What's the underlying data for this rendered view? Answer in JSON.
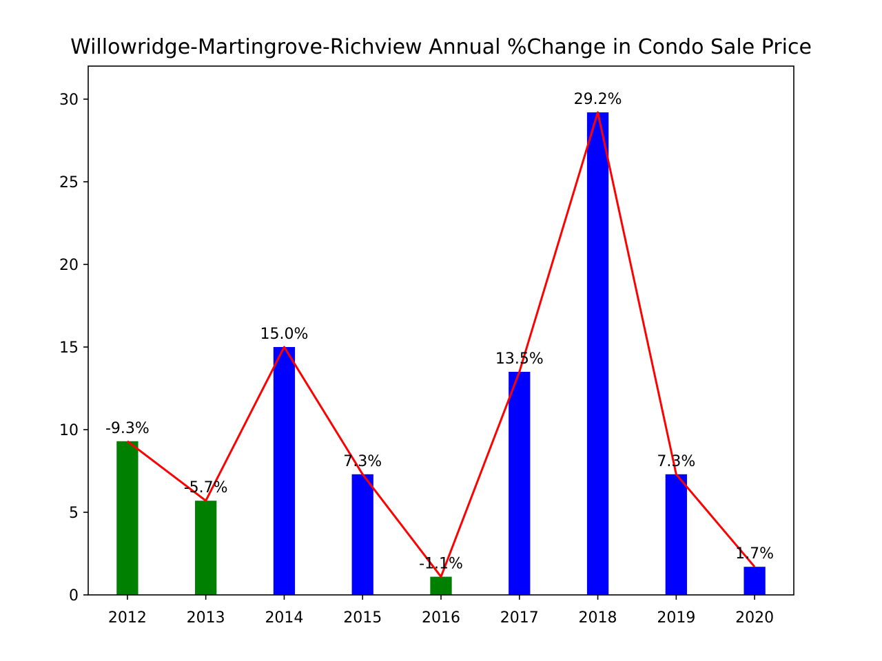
{
  "chart_data": {
    "type": "bar",
    "title": "Willowridge-Martingrove-Richview Annual %Change in Condo Sale Price",
    "xlabel": "",
    "ylabel": "",
    "categories": [
      "2012",
      "2013",
      "2014",
      "2015",
      "2016",
      "2017",
      "2018",
      "2019",
      "2020"
    ],
    "values": [
      9.3,
      5.7,
      15.0,
      7.3,
      1.1,
      13.5,
      29.2,
      7.3,
      1.7
    ],
    "labels": [
      "-9.3%",
      "-5.7%",
      "15.0%",
      "7.3%",
      "-1.1%",
      "13.5%",
      "29.2%",
      "7.3%",
      "1.7%"
    ],
    "bar_colors": [
      "#008000",
      "#008000",
      "#0000ff",
      "#0000ff",
      "#008000",
      "#0000ff",
      "#0000ff",
      "#0000ff",
      "#0000ff"
    ],
    "line": {
      "color": "#ff0000",
      "values": [
        9.3,
        5.7,
        15.0,
        7.3,
        1.1,
        13.5,
        29.2,
        7.3,
        1.7
      ]
    },
    "ylim": [
      0,
      32
    ],
    "yticks": [
      0,
      5,
      10,
      15,
      20,
      25,
      30
    ],
    "grid": false,
    "legend": "none"
  }
}
